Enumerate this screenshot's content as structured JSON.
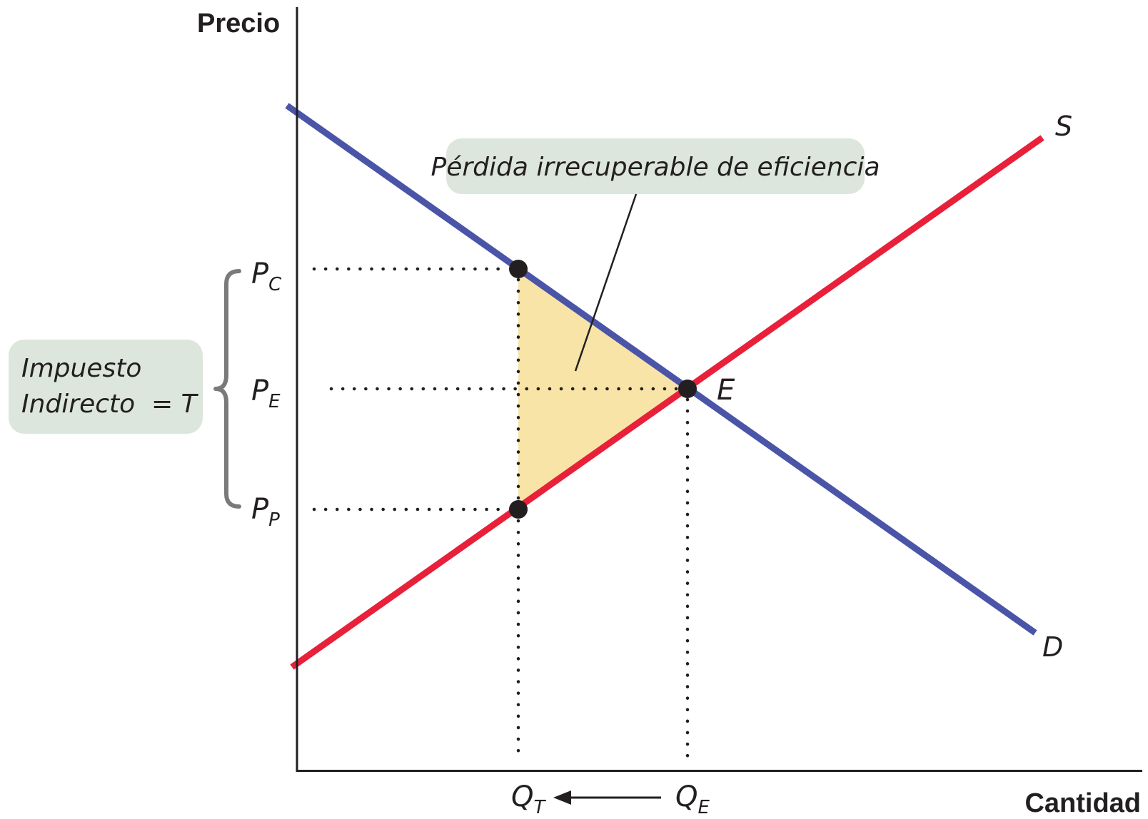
{
  "axes": {
    "y_title": "Precio",
    "x_title": "Cantidad"
  },
  "curves": {
    "supply_label": "S",
    "demand_label": "D"
  },
  "equilibrium_label": "E",
  "price_labels": {
    "consumer": {
      "main": "P",
      "sub": "C"
    },
    "equilibrium": {
      "main": "P",
      "sub": "E"
    },
    "producer": {
      "main": "P",
      "sub": "P"
    }
  },
  "quantity_labels": {
    "tax": {
      "main": "Q",
      "sub": "T"
    },
    "equilibrium": {
      "main": "Q",
      "sub": "E"
    }
  },
  "callouts": {
    "deadweight_loss": "Pérdida irrecuperable de eficiencia",
    "tax_line1": "Impuesto",
    "tax_line2": "Indirecto",
    "tax_eq": "= T"
  },
  "colors": {
    "supply": "#e8203a",
    "demand": "#4a55a8",
    "deadweight_fill": "#f8e4a6",
    "callout_fill": "#dde6dc",
    "brace": "#7a7a78",
    "ink": "#231f20"
  }
}
